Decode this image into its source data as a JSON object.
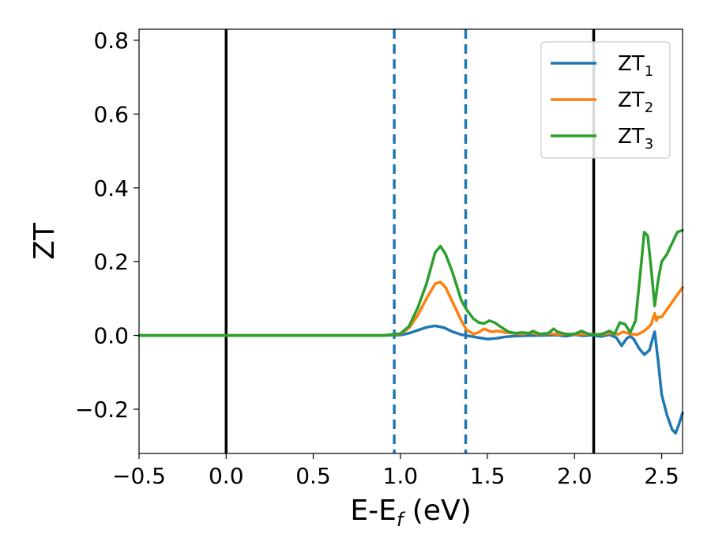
{
  "chart_data": {
    "type": "line",
    "xlabel_main": "E-E",
    "xlabel_sub": "f",
    "xlabel_unit": " (eV)",
    "ylabel": "ZT",
    "xlim": [
      -0.5,
      2.62
    ],
    "ylim": [
      -0.32,
      0.83
    ],
    "xticks": [
      -0.5,
      0.0,
      0.5,
      1.0,
      1.5,
      2.0,
      2.5
    ],
    "xtick_labels": [
      "−0.5",
      "0.0",
      "0.5",
      "1.0",
      "1.5",
      "2.0",
      "2.5"
    ],
    "yticks": [
      -0.2,
      0.0,
      0.2,
      0.4,
      0.6,
      0.8
    ],
    "ytick_labels": [
      "−0.2",
      "0.0",
      "0.2",
      "0.4",
      "0.6",
      "0.8"
    ],
    "grid": false,
    "legend_position": "top-right",
    "vlines": [
      {
        "x": 0.0,
        "style": "solid",
        "color": "#000000"
      },
      {
        "x": 0.965,
        "style": "dashed",
        "color": "#1f77b4"
      },
      {
        "x": 1.375,
        "style": "dashed",
        "color": "#1f77b4"
      },
      {
        "x": 2.11,
        "style": "solid",
        "color": "#000000"
      }
    ],
    "series": [
      {
        "name": "ZT",
        "sub": "1",
        "color": "#1f77b4",
        "points": [
          [
            -0.5,
            0
          ],
          [
            0.9,
            0
          ],
          [
            1.0,
            0.001
          ],
          [
            1.05,
            0.006
          ],
          [
            1.1,
            0.014
          ],
          [
            1.15,
            0.022
          ],
          [
            1.2,
            0.026
          ],
          [
            1.25,
            0.021
          ],
          [
            1.3,
            0.01
          ],
          [
            1.35,
            0.002
          ],
          [
            1.4,
            -0.002
          ],
          [
            1.45,
            -0.006
          ],
          [
            1.5,
            -0.01
          ],
          [
            1.55,
            -0.008
          ],
          [
            1.6,
            -0.004
          ],
          [
            1.65,
            -0.002
          ],
          [
            1.7,
            -0.001
          ],
          [
            1.8,
            0
          ],
          [
            1.9,
            0.001
          ],
          [
            1.95,
            -0.002
          ],
          [
            2.0,
            0.002
          ],
          [
            2.05,
            -0.001
          ],
          [
            2.1,
            0.001
          ],
          [
            2.15,
            -0.003
          ],
          [
            2.2,
            0.002
          ],
          [
            2.24,
            -0.006
          ],
          [
            2.27,
            -0.028
          ],
          [
            2.3,
            -0.008
          ],
          [
            2.32,
            -0.002
          ],
          [
            2.34,
            -0.01
          ],
          [
            2.37,
            -0.035
          ],
          [
            2.4,
            -0.052
          ],
          [
            2.43,
            -0.04
          ],
          [
            2.45,
            -0.005
          ],
          [
            2.46,
            0.01
          ],
          [
            2.48,
            -0.07
          ],
          [
            2.5,
            -0.16
          ],
          [
            2.53,
            -0.215
          ],
          [
            2.56,
            -0.255
          ],
          [
            2.58,
            -0.265
          ],
          [
            2.6,
            -0.24
          ],
          [
            2.62,
            -0.21
          ]
        ]
      },
      {
        "name": "ZT",
        "sub": "2",
        "color": "#ff7f0e",
        "points": [
          [
            -0.5,
            0
          ],
          [
            0.9,
            0
          ],
          [
            1.0,
            0.004
          ],
          [
            1.05,
            0.02
          ],
          [
            1.1,
            0.055
          ],
          [
            1.15,
            0.1
          ],
          [
            1.2,
            0.14
          ],
          [
            1.23,
            0.145
          ],
          [
            1.26,
            0.13
          ],
          [
            1.3,
            0.09
          ],
          [
            1.35,
            0.04
          ],
          [
            1.38,
            0.015
          ],
          [
            1.42,
            0.004
          ],
          [
            1.45,
            0.008
          ],
          [
            1.48,
            0.018
          ],
          [
            1.52,
            0.01
          ],
          [
            1.56,
            0.012
          ],
          [
            1.6,
            0.008
          ],
          [
            1.65,
            0.006
          ],
          [
            1.7,
            0.004
          ],
          [
            1.75,
            0.007
          ],
          [
            1.8,
            0.003
          ],
          [
            1.85,
            0.005
          ],
          [
            1.9,
            0.003
          ],
          [
            1.95,
            0.004
          ],
          [
            2.0,
            0.003
          ],
          [
            2.05,
            0.004
          ],
          [
            2.1,
            0.003
          ],
          [
            2.15,
            0.002
          ],
          [
            2.2,
            0.006
          ],
          [
            2.25,
            0.003
          ],
          [
            2.28,
            0.01
          ],
          [
            2.32,
            0.004
          ],
          [
            2.36,
            0.002
          ],
          [
            2.4,
            0.012
          ],
          [
            2.42,
            0.02
          ],
          [
            2.44,
            0.03
          ],
          [
            2.46,
            0.06
          ],
          [
            2.47,
            0.04
          ],
          [
            2.48,
            0.05
          ],
          [
            2.5,
            0.05
          ],
          [
            2.53,
            0.07
          ],
          [
            2.56,
            0.09
          ],
          [
            2.59,
            0.11
          ],
          [
            2.62,
            0.13
          ]
        ]
      },
      {
        "name": "ZT",
        "sub": "3",
        "color": "#2ca02c",
        "points": [
          [
            -0.5,
            0
          ],
          [
            0.9,
            0
          ],
          [
            1.0,
            0.005
          ],
          [
            1.05,
            0.025
          ],
          [
            1.1,
            0.075
          ],
          [
            1.15,
            0.14
          ],
          [
            1.2,
            0.225
          ],
          [
            1.23,
            0.242
          ],
          [
            1.26,
            0.22
          ],
          [
            1.3,
            0.17
          ],
          [
            1.35,
            0.095
          ],
          [
            1.38,
            0.07
          ],
          [
            1.42,
            0.045
          ],
          [
            1.45,
            0.035
          ],
          [
            1.48,
            0.032
          ],
          [
            1.51,
            0.04
          ],
          [
            1.54,
            0.035
          ],
          [
            1.58,
            0.022
          ],
          [
            1.62,
            0.01
          ],
          [
            1.66,
            0.006
          ],
          [
            1.7,
            0.008
          ],
          [
            1.74,
            0.006
          ],
          [
            1.76,
            0.012
          ],
          [
            1.8,
            0.004
          ],
          [
            1.85,
            0.006
          ],
          [
            1.88,
            0.018
          ],
          [
            1.9,
            0.01
          ],
          [
            1.93,
            0.006
          ],
          [
            1.96,
            0.003
          ],
          [
            2.0,
            0.004
          ],
          [
            2.04,
            0.012
          ],
          [
            2.08,
            0.004
          ],
          [
            2.12,
            0.002
          ],
          [
            2.16,
            0.004
          ],
          [
            2.2,
            0.012
          ],
          [
            2.23,
            0.004
          ],
          [
            2.26,
            0.035
          ],
          [
            2.29,
            0.03
          ],
          [
            2.32,
            0.008
          ],
          [
            2.35,
            0.04
          ],
          [
            2.38,
            0.18
          ],
          [
            2.4,
            0.28
          ],
          [
            2.42,
            0.27
          ],
          [
            2.44,
            0.18
          ],
          [
            2.46,
            0.08
          ],
          [
            2.48,
            0.15
          ],
          [
            2.5,
            0.2
          ],
          [
            2.53,
            0.22
          ],
          [
            2.56,
            0.25
          ],
          [
            2.59,
            0.28
          ],
          [
            2.62,
            0.285
          ]
        ]
      }
    ]
  }
}
